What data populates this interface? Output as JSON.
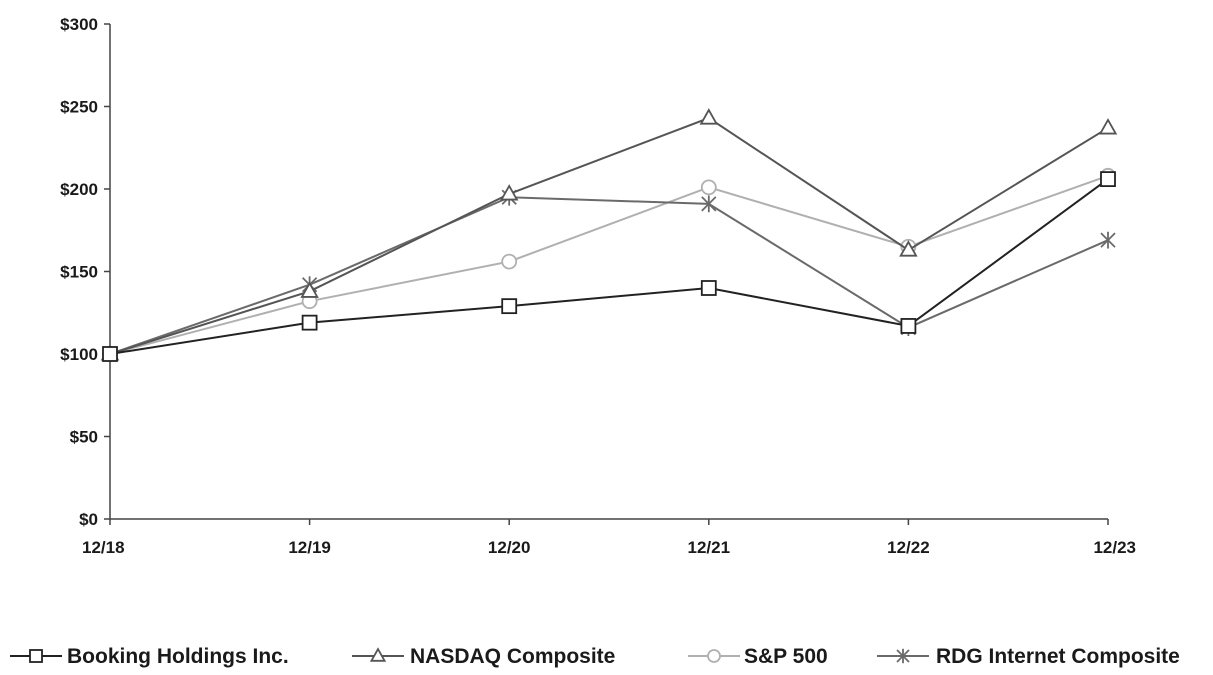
{
  "chart_data": {
    "type": "line",
    "title": "",
    "xlabel": "",
    "ylabel": "",
    "categories": [
      "12/18",
      "12/19",
      "12/20",
      "12/21",
      "12/22",
      "12/23"
    ],
    "y_tick_labels": [
      "$0",
      "$50",
      "$100",
      "$150",
      "$200",
      "$250",
      "$300"
    ],
    "y_ticks": [
      0,
      50,
      100,
      150,
      200,
      250,
      300
    ],
    "ylim": [
      0,
      300
    ],
    "grid": false,
    "legend_position": "bottom",
    "series": [
      {
        "name": "Booking Holdings Inc.",
        "marker": "square",
        "color": "#222222",
        "values": [
          100,
          119,
          129,
          140,
          117,
          206
        ]
      },
      {
        "name": "NASDAQ Composite",
        "marker": "triangle",
        "color": "#555555",
        "values": [
          100,
          138,
          197,
          243,
          163,
          237
        ]
      },
      {
        "name": "S&P 500",
        "marker": "circle",
        "color": "#b0b0b0",
        "values": [
          100,
          132,
          156,
          201,
          165,
          208
        ]
      },
      {
        "name": "RDG Internet Composite",
        "marker": "asterisk",
        "color": "#6a6a6a",
        "values": [
          100,
          142,
          195,
          191,
          116,
          169
        ]
      }
    ]
  }
}
